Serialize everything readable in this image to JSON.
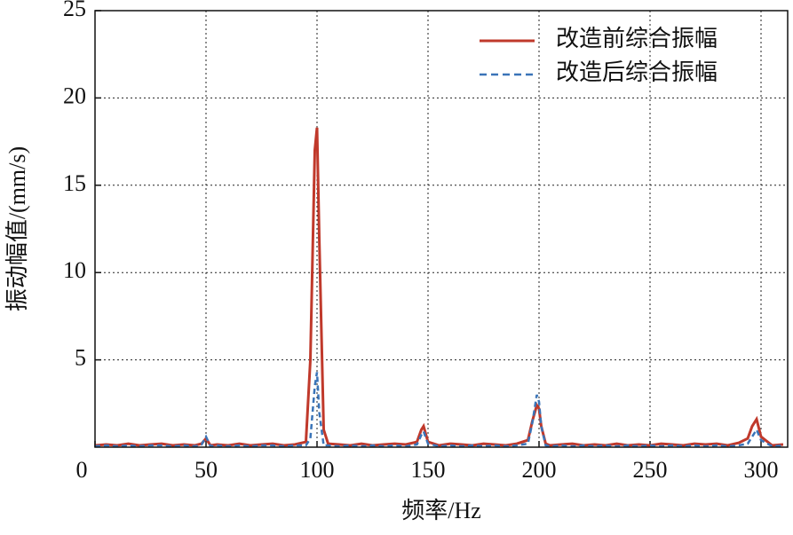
{
  "chart_data": {
    "type": "line",
    "xlabel": "频率/Hz",
    "ylabel": "振动幅值/(mm/s)",
    "x": [
      0,
      5,
      10,
      15,
      20,
      25,
      30,
      35,
      40,
      45,
      48,
      50,
      52,
      55,
      60,
      65,
      70,
      75,
      80,
      85,
      90,
      95,
      97,
      99,
      100,
      101,
      103,
      105,
      110,
      115,
      120,
      125,
      130,
      135,
      140,
      145,
      147,
      148,
      150,
      155,
      160,
      165,
      170,
      175,
      180,
      185,
      190,
      195,
      197,
      199,
      200,
      201,
      203,
      205,
      210,
      215,
      220,
      225,
      230,
      235,
      240,
      245,
      250,
      255,
      260,
      265,
      270,
      275,
      280,
      285,
      290,
      294,
      296,
      298,
      300,
      305,
      310
    ],
    "series": [
      {
        "name": "改造前综合振幅",
        "color": "#c0392b",
        "dash": false,
        "values": [
          0.1,
          0.15,
          0.1,
          0.2,
          0.1,
          0.15,
          0.2,
          0.1,
          0.15,
          0.1,
          0.2,
          0.5,
          0.1,
          0.15,
          0.1,
          0.2,
          0.1,
          0.15,
          0.2,
          0.1,
          0.15,
          0.3,
          5,
          17,
          18.3,
          12,
          1,
          0.2,
          0.15,
          0.1,
          0.2,
          0.1,
          0.15,
          0.2,
          0.15,
          0.3,
          1.0,
          1.2,
          0.3,
          0.1,
          0.2,
          0.15,
          0.1,
          0.2,
          0.15,
          0.1,
          0.2,
          0.4,
          1.5,
          2.4,
          2.2,
          1.2,
          0.2,
          0.1,
          0.15,
          0.2,
          0.1,
          0.15,
          0.1,
          0.2,
          0.1,
          0.15,
          0.1,
          0.2,
          0.15,
          0.1,
          0.2,
          0.15,
          0.2,
          0.1,
          0.25,
          0.5,
          1.2,
          1.6,
          0.6,
          0.1,
          0.15
        ]
      },
      {
        "name": "改造后综合振幅",
        "color": "#3a74b8",
        "dash": true,
        "values": [
          0.05,
          0.1,
          0.05,
          0.1,
          0.05,
          0.1,
          0.1,
          0.05,
          0.1,
          0.05,
          0.15,
          0.6,
          0.05,
          0.1,
          0.05,
          0.1,
          0.05,
          0.1,
          0.1,
          0.05,
          0.1,
          0.1,
          0.5,
          3.5,
          4.3,
          2,
          0.1,
          0.1,
          0.05,
          0.1,
          0.05,
          0.1,
          0.05,
          0.1,
          0.05,
          0.15,
          0.7,
          0.9,
          0.2,
          0.05,
          0.1,
          0.05,
          0.1,
          0.05,
          0.1,
          0.05,
          0.1,
          0.2,
          1.4,
          3.0,
          2.6,
          1.2,
          0.1,
          0.05,
          0.1,
          0.05,
          0.1,
          0.05,
          0.1,
          0.05,
          0.1,
          0.05,
          0.1,
          0.05,
          0.1,
          0.05,
          0.1,
          0.05,
          0.1,
          0.05,
          0.1,
          0.2,
          0.6,
          1.0,
          0.4,
          0.05,
          0.1
        ]
      }
    ],
    "xlim": [
      0,
      312
    ],
    "ylim": [
      0,
      25
    ],
    "xticks": [
      0,
      50,
      100,
      150,
      200,
      250,
      300
    ],
    "yticks": [
      5,
      10,
      15,
      20,
      25
    ],
    "grid": true,
    "legend": "upper right"
  }
}
